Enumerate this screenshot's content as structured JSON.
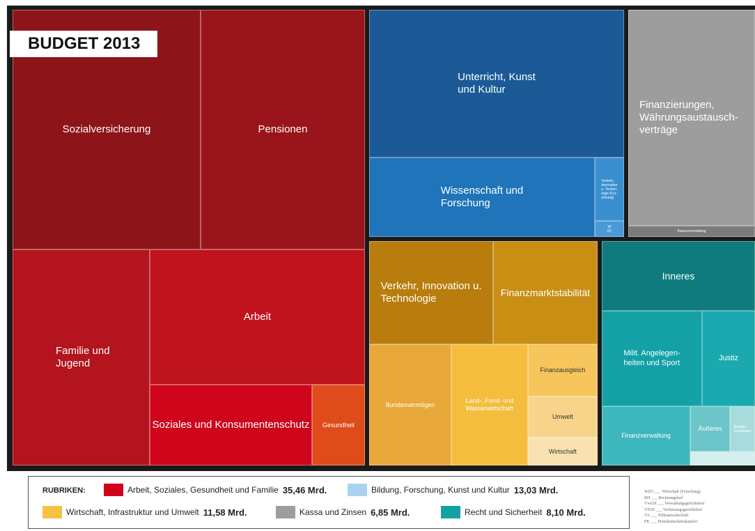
{
  "title": "BUDGET 2013",
  "tiles": [
    {
      "label": "Sozialversicherung",
      "color": "#8d1419"
    },
    {
      "label": "Pensionen",
      "color": "#9a151b"
    },
    {
      "label": "Familie und\nJugend",
      "color": "#b3141d"
    },
    {
      "label": "Arbeit",
      "color": "#bf131d"
    },
    {
      "label": "Soziales und Konsumentenschutz",
      "color": "#cf051c"
    },
    {
      "label": "Gesundheit",
      "color": "#e04b1b"
    },
    {
      "label": "Unterricht, Kunst\nund Kultur",
      "color": "#1b5a96"
    },
    {
      "label": "Wissenschaft und\nForschung",
      "color": "#1f74ba"
    },
    {
      "label": "Verkehr,\nInnovation\nu. Techno-\nlogie (For-\nschung)",
      "color": "#3a8fd0"
    },
    {
      "label": "W\n(F)",
      "color": "#4a9ad8"
    },
    {
      "label": "Finanzierungen,\nWährungsaustausch-\nverträge",
      "color": "#9d9d9d"
    },
    {
      "label": "Kassenverwaltung",
      "color": "#7b7b7b"
    },
    {
      "label": "Verkehr, Innovation u.\nTechnologie",
      "color": "#b87d0c"
    },
    {
      "label": "Finanzmarktstabilität",
      "color": "#c98e14"
    },
    {
      "label": "Bundesvermögen",
      "color": "#e8a83a"
    },
    {
      "label": "Land-, Forst- und\nWasserwirtschaft",
      "color": "#f4bd3e"
    },
    {
      "label": "Finanzausgleich",
      "color": "#f6c55c"
    },
    {
      "label": "Umwelt",
      "color": "#f8d48a"
    },
    {
      "label": "Wirtschaft",
      "color": "#fae2b0"
    },
    {
      "label": "Inneres",
      "color": "#0f7b7e"
    },
    {
      "label": "Milit. Angelegen-\nheiten und Sport",
      "color": "#13a1a6"
    },
    {
      "label": "Justiz",
      "color": "#1aa9ae"
    },
    {
      "label": "Finanzverwaltung",
      "color": "#3cb8bd"
    },
    {
      "label": "Äußeres",
      "color": "#6cc5c8"
    },
    {
      "label": "Bundes-\nkanzleramt",
      "color": "#a7dcdd"
    }
  ],
  "legend": {
    "heading": "RUBRIKEN:",
    "items": [
      {
        "label": "Arbeit, Soziales, Gesundheit und Familie",
        "amount": "35,46 Mrd.",
        "color": "#d0021b"
      },
      {
        "label": "Bildung, Forschung, Kunst und Kultur",
        "amount": "13,03 Mrd.",
        "color": "#a9d2f0"
      },
      {
        "label": "Wirtschaft, Infrastruktur und Umwelt",
        "amount": "11,58 Mrd.",
        "color": "#f6c244"
      },
      {
        "label": "Kassa und Zinsen",
        "amount": "6,85 Mrd.",
        "color": "#9d9d9d"
      },
      {
        "label": "Recht und Sicherheit",
        "amount": "8,10 Mrd.",
        "color": "#13a1a6"
      }
    ]
  },
  "abbreviations": [
    "W(F) ___ Wirtschaft (Forschung)",
    "RH ___ Rechnungshof",
    "VwGH ___ Verwaltungsgerichtshof",
    "VfGH ___ Verfassungsgerichtshof",
    "VA ___ Volksanwaltschaft",
    "PK ___ Präsidentschaftskanzlei"
  ]
}
